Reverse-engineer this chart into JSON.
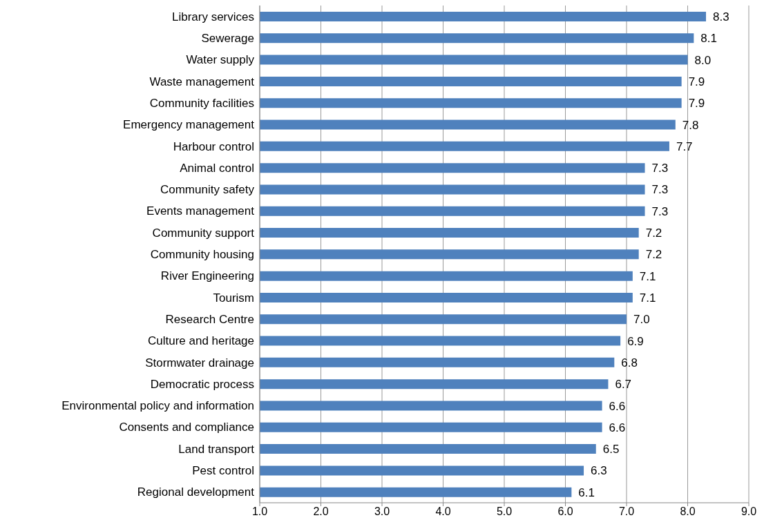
{
  "chart_data": {
    "type": "bar",
    "orientation": "horizontal",
    "categories": [
      "Library services",
      "Sewerage",
      "Water supply",
      "Waste management",
      "Community facilities",
      "Emergency management",
      "Harbour control",
      "Animal control",
      "Community safety",
      "Events management",
      "Community support",
      "Community housing",
      "River Engineering",
      "Tourism",
      "Research Centre",
      "Culture and heritage",
      "Stormwater drainage",
      "Democratic process",
      "Environmental policy and information",
      "Consents and compliance",
      "Land transport",
      "Pest control",
      "Regional development"
    ],
    "values": [
      8.3,
      8.1,
      8.0,
      7.9,
      7.9,
      7.8,
      7.7,
      7.3,
      7.3,
      7.3,
      7.2,
      7.2,
      7.1,
      7.1,
      7.0,
      6.9,
      6.8,
      6.7,
      6.6,
      6.6,
      6.5,
      6.3,
      6.1
    ],
    "value_labels": [
      "8.3",
      "8.1",
      "8.0",
      "7.9",
      "7.9",
      "7.8",
      "7.7",
      "7.3",
      "7.3",
      "7.3",
      "7.2",
      "7.2",
      "7.1",
      "7.1",
      "7.0",
      "6.9",
      "6.8",
      "6.7",
      "6.6",
      "6.6",
      "6.5",
      "6.3",
      "6.1"
    ],
    "color": "#4f81bd",
    "xlim": [
      1,
      9
    ],
    "xticks": [
      {
        "value": 1,
        "label": "1.0"
      },
      {
        "value": 2,
        "label": "2.0"
      },
      {
        "value": 3,
        "label": "3.0"
      },
      {
        "value": 4,
        "label": "4.0"
      },
      {
        "value": 5,
        "label": "5.0"
      },
      {
        "value": 6,
        "label": "6.0"
      },
      {
        "value": 7,
        "label": "7.0"
      },
      {
        "value": 8,
        "label": "8.0"
      },
      {
        "value": 9,
        "label": "9.0"
      }
    ],
    "grid": "x",
    "legend": false
  }
}
